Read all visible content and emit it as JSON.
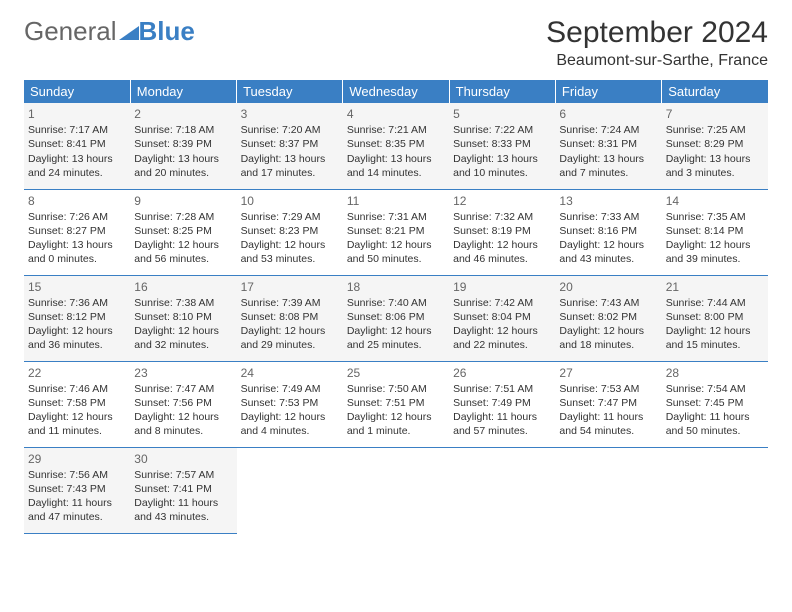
{
  "logo": {
    "text1": "General",
    "text2": "Blue"
  },
  "title": "September 2024",
  "location": "Beaumont-sur-Sarthe, France",
  "colors": {
    "header_bg": "#3a7fc4",
    "header_text": "#ffffff",
    "row_alt_bg": "#f5f5f5",
    "text": "#333333",
    "border": "#3a7fc4"
  },
  "day_headers": [
    "Sunday",
    "Monday",
    "Tuesday",
    "Wednesday",
    "Thursday",
    "Friday",
    "Saturday"
  ],
  "weeks": [
    [
      {
        "n": "1",
        "sr": "7:17 AM",
        "ss": "8:41 PM",
        "dl": "13 hours and 24 minutes."
      },
      {
        "n": "2",
        "sr": "7:18 AM",
        "ss": "8:39 PM",
        "dl": "13 hours and 20 minutes."
      },
      {
        "n": "3",
        "sr": "7:20 AM",
        "ss": "8:37 PM",
        "dl": "13 hours and 17 minutes."
      },
      {
        "n": "4",
        "sr": "7:21 AM",
        "ss": "8:35 PM",
        "dl": "13 hours and 14 minutes."
      },
      {
        "n": "5",
        "sr": "7:22 AM",
        "ss": "8:33 PM",
        "dl": "13 hours and 10 minutes."
      },
      {
        "n": "6",
        "sr": "7:24 AM",
        "ss": "8:31 PM",
        "dl": "13 hours and 7 minutes."
      },
      {
        "n": "7",
        "sr": "7:25 AM",
        "ss": "8:29 PM",
        "dl": "13 hours and 3 minutes."
      }
    ],
    [
      {
        "n": "8",
        "sr": "7:26 AM",
        "ss": "8:27 PM",
        "dl": "13 hours and 0 minutes."
      },
      {
        "n": "9",
        "sr": "7:28 AM",
        "ss": "8:25 PM",
        "dl": "12 hours and 56 minutes."
      },
      {
        "n": "10",
        "sr": "7:29 AM",
        "ss": "8:23 PM",
        "dl": "12 hours and 53 minutes."
      },
      {
        "n": "11",
        "sr": "7:31 AM",
        "ss": "8:21 PM",
        "dl": "12 hours and 50 minutes."
      },
      {
        "n": "12",
        "sr": "7:32 AM",
        "ss": "8:19 PM",
        "dl": "12 hours and 46 minutes."
      },
      {
        "n": "13",
        "sr": "7:33 AM",
        "ss": "8:16 PM",
        "dl": "12 hours and 43 minutes."
      },
      {
        "n": "14",
        "sr": "7:35 AM",
        "ss": "8:14 PM",
        "dl": "12 hours and 39 minutes."
      }
    ],
    [
      {
        "n": "15",
        "sr": "7:36 AM",
        "ss": "8:12 PM",
        "dl": "12 hours and 36 minutes."
      },
      {
        "n": "16",
        "sr": "7:38 AM",
        "ss": "8:10 PM",
        "dl": "12 hours and 32 minutes."
      },
      {
        "n": "17",
        "sr": "7:39 AM",
        "ss": "8:08 PM",
        "dl": "12 hours and 29 minutes."
      },
      {
        "n": "18",
        "sr": "7:40 AM",
        "ss": "8:06 PM",
        "dl": "12 hours and 25 minutes."
      },
      {
        "n": "19",
        "sr": "7:42 AM",
        "ss": "8:04 PM",
        "dl": "12 hours and 22 minutes."
      },
      {
        "n": "20",
        "sr": "7:43 AM",
        "ss": "8:02 PM",
        "dl": "12 hours and 18 minutes."
      },
      {
        "n": "21",
        "sr": "7:44 AM",
        "ss": "8:00 PM",
        "dl": "12 hours and 15 minutes."
      }
    ],
    [
      {
        "n": "22",
        "sr": "7:46 AM",
        "ss": "7:58 PM",
        "dl": "12 hours and 11 minutes."
      },
      {
        "n": "23",
        "sr": "7:47 AM",
        "ss": "7:56 PM",
        "dl": "12 hours and 8 minutes."
      },
      {
        "n": "24",
        "sr": "7:49 AM",
        "ss": "7:53 PM",
        "dl": "12 hours and 4 minutes."
      },
      {
        "n": "25",
        "sr": "7:50 AM",
        "ss": "7:51 PM",
        "dl": "12 hours and 1 minute."
      },
      {
        "n": "26",
        "sr": "7:51 AM",
        "ss": "7:49 PM",
        "dl": "11 hours and 57 minutes."
      },
      {
        "n": "27",
        "sr": "7:53 AM",
        "ss": "7:47 PM",
        "dl": "11 hours and 54 minutes."
      },
      {
        "n": "28",
        "sr": "7:54 AM",
        "ss": "7:45 PM",
        "dl": "11 hours and 50 minutes."
      }
    ],
    [
      {
        "n": "29",
        "sr": "7:56 AM",
        "ss": "7:43 PM",
        "dl": "11 hours and 47 minutes."
      },
      {
        "n": "30",
        "sr": "7:57 AM",
        "ss": "7:41 PM",
        "dl": "11 hours and 43 minutes."
      },
      null,
      null,
      null,
      null,
      null
    ]
  ],
  "labels": {
    "sunrise": "Sunrise:",
    "sunset": "Sunset:",
    "daylight": "Daylight:"
  }
}
